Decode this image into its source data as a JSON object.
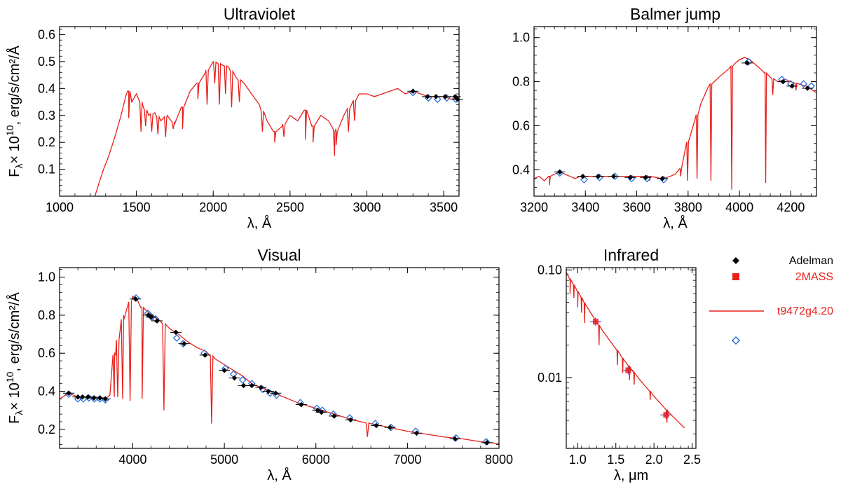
{
  "legend": {
    "items": [
      {
        "label": "Adelman",
        "marker": "diamond",
        "color": "#000000"
      },
      {
        "label": "2MASS",
        "marker": "square",
        "color": "#e8201b"
      },
      {
        "label": "t9472g4.20",
        "marker": "line",
        "color": "#e8201b"
      },
      {
        "label": "",
        "marker": "open-diamond",
        "color": "#2a6fd6"
      }
    ]
  },
  "colors": {
    "model": "#e8201b",
    "adelman": "#000000",
    "synthetic": "#2a6fd6",
    "twomass": "#e8201b"
  },
  "chart_data": [
    {
      "id": "uv",
      "type": "line",
      "title": "Ultraviolet",
      "xlabel": "λ, Å",
      "ylabel": "F_λ× 10^10, erg/s/cm²/Å",
      "xlim": [
        1000,
        3600
      ],
      "ylim": [
        0,
        0.63
      ],
      "xticks": [
        1000,
        1500,
        2000,
        2500,
        3000,
        3500
      ],
      "yticks": [
        0.1,
        0.2,
        0.3,
        0.4,
        0.5,
        0.6
      ],
      "ytick_labels": [
        "0.1",
        "0.2",
        "0.3",
        "0.4",
        "0.5",
        "0.6"
      ],
      "model": {
        "name": "t9472g4.20",
        "x": [
          1230,
          1280,
          1320,
          1360,
          1400,
          1430,
          1450,
          1470,
          1500,
          1540,
          1580,
          1620,
          1660,
          1700,
          1750,
          1800,
          1850,
          1900,
          1950,
          2000,
          2050,
          2100,
          2150,
          2200,
          2250,
          2300,
          2350,
          2400,
          2450,
          2500,
          2550,
          2600,
          2650,
          2700,
          2750,
          2800,
          2850,
          2900,
          2950,
          3000,
          3050,
          3100,
          3150,
          3200,
          3250,
          3300,
          3350,
          3400,
          3450,
          3500,
          3550,
          3600
        ],
        "y": [
          0.0,
          0.09,
          0.15,
          0.22,
          0.3,
          0.37,
          0.39,
          0.35,
          0.38,
          0.34,
          0.3,
          0.31,
          0.28,
          0.3,
          0.27,
          0.33,
          0.39,
          0.42,
          0.46,
          0.5,
          0.49,
          0.48,
          0.44,
          0.42,
          0.38,
          0.34,
          0.28,
          0.24,
          0.26,
          0.3,
          0.28,
          0.32,
          0.26,
          0.3,
          0.28,
          0.24,
          0.3,
          0.34,
          0.38,
          0.38,
          0.37,
          0.38,
          0.39,
          0.4,
          0.38,
          0.39,
          0.38,
          0.37,
          0.37,
          0.37,
          0.36,
          0.37
        ],
        "dips": [
          [
            1450,
            0.29
          ],
          [
            1530,
            0.24
          ],
          [
            1560,
            0.26
          ],
          [
            1600,
            0.24
          ],
          [
            1640,
            0.23
          ],
          [
            1690,
            0.22
          ],
          [
            1740,
            0.25
          ],
          [
            1800,
            0.25
          ],
          [
            1900,
            0.36
          ],
          [
            1960,
            0.34
          ],
          [
            2010,
            0.42
          ],
          [
            2040,
            0.34
          ],
          [
            2080,
            0.38
          ],
          [
            2120,
            0.33
          ],
          [
            2170,
            0.35
          ],
          [
            2320,
            0.24
          ],
          [
            2400,
            0.2
          ],
          [
            2460,
            0.22
          ],
          [
            2600,
            0.21
          ],
          [
            2650,
            0.2
          ],
          [
            2790,
            0.15
          ],
          [
            2800,
            0.19
          ],
          [
            2880,
            0.24
          ],
          [
            2920,
            0.28
          ]
        ]
      },
      "adelman": {
        "x": [
          3300,
          3395,
          3450,
          3510,
          3575,
          3590
        ],
        "y": [
          0.39,
          0.37,
          0.37,
          0.37,
          0.37,
          0.36
        ]
      },
      "synthetic": {
        "x": [
          3300,
          3400,
          3460,
          3520,
          3580
        ],
        "y": [
          0.385,
          0.365,
          0.36,
          0.365,
          0.36
        ]
      }
    },
    {
      "id": "balmer",
      "type": "line",
      "title": "Balmer jump",
      "xlabel": "λ, Å",
      "ylabel": "",
      "xlim": [
        3200,
        4300
      ],
      "ylim": [
        0.28,
        1.05
      ],
      "xticks": [
        3200,
        3400,
        3600,
        3800,
        4000,
        4200
      ],
      "yticks": [
        0.4,
        0.6,
        0.8,
        1.0
      ],
      "ytick_labels": [
        "0.4",
        "0.6",
        "0.8",
        "1.0"
      ],
      "model": {
        "name": "t9472g4.20",
        "x": [
          3200,
          3220,
          3240,
          3260,
          3280,
          3300,
          3320,
          3340,
          3360,
          3380,
          3400,
          3450,
          3500,
          3550,
          3600,
          3650,
          3700,
          3730,
          3750,
          3770,
          3790,
          3820,
          3850,
          3880,
          3920,
          3960,
          3980,
          4000,
          4020,
          4040,
          4060,
          4080,
          4100,
          4120,
          4150,
          4180,
          4200,
          4230,
          4260,
          4300
        ],
        "y": [
          0.36,
          0.37,
          0.35,
          0.37,
          0.38,
          0.39,
          0.38,
          0.37,
          0.36,
          0.37,
          0.37,
          0.37,
          0.37,
          0.37,
          0.37,
          0.37,
          0.36,
          0.37,
          0.38,
          0.4,
          0.5,
          0.6,
          0.7,
          0.78,
          0.82,
          0.86,
          0.88,
          0.9,
          0.91,
          0.9,
          0.88,
          0.86,
          0.84,
          0.82,
          0.8,
          0.81,
          0.8,
          0.79,
          0.78,
          0.75
        ],
        "dips": [
          [
            3260,
            0.33
          ],
          [
            3650,
            0.35
          ],
          [
            3700,
            0.35
          ],
          [
            3771,
            0.37
          ],
          [
            3798,
            0.35
          ],
          [
            3835,
            0.36
          ],
          [
            3889,
            0.35
          ],
          [
            3970,
            0.31
          ],
          [
            4102,
            0.34
          ],
          [
            4130,
            0.74
          ],
          [
            4220,
            0.76
          ]
        ]
      },
      "adelman": {
        "x": [
          3300,
          3390,
          3450,
          3510,
          3575,
          3635,
          3700,
          4030,
          4170,
          4205,
          4265
        ],
        "y": [
          0.39,
          0.37,
          0.37,
          0.37,
          0.365,
          0.365,
          0.36,
          0.885,
          0.8,
          0.78,
          0.77
        ]
      },
      "synthetic": {
        "x": [
          3300,
          3395,
          3455,
          3515,
          3580,
          3640,
          3705,
          4035,
          4165,
          4200,
          4250,
          4280
        ],
        "y": [
          0.385,
          0.355,
          0.365,
          0.37,
          0.36,
          0.36,
          0.355,
          0.89,
          0.81,
          0.79,
          0.79,
          0.78
        ]
      }
    },
    {
      "id": "visual",
      "type": "line",
      "title": "Visual",
      "xlabel": "λ, Å",
      "ylabel": "F_λ× 10^10, erg/s/cm²/Å",
      "xlim": [
        3200,
        8000
      ],
      "ylim": [
        0.1,
        1.05
      ],
      "xticks": [
        4000,
        5000,
        6000,
        7000,
        8000
      ],
      "yticks": [
        0.2,
        0.4,
        0.6,
        0.8,
        1.0
      ],
      "ytick_labels": [
        "0.2",
        "0.4",
        "0.6",
        "0.8",
        "1.0"
      ],
      "model": {
        "name": "t9472g4.20",
        "x": [
          3200,
          3300,
          3400,
          3500,
          3600,
          3700,
          3750,
          3800,
          3900,
          4000,
          4050,
          4100,
          4200,
          4300,
          4400,
          4500,
          4600,
          4700,
          4800,
          4900,
          5000,
          5100,
          5200,
          5300,
          5400,
          5500,
          5600,
          5800,
          6000,
          6200,
          6400,
          6600,
          6800,
          7000,
          7200,
          7400,
          7600,
          7800,
          8000
        ],
        "y": [
          0.36,
          0.39,
          0.37,
          0.37,
          0.37,
          0.36,
          0.38,
          0.6,
          0.8,
          0.9,
          0.88,
          0.84,
          0.8,
          0.77,
          0.73,
          0.7,
          0.66,
          0.63,
          0.61,
          0.57,
          0.54,
          0.51,
          0.48,
          0.44,
          0.42,
          0.4,
          0.38,
          0.34,
          0.31,
          0.28,
          0.25,
          0.23,
          0.21,
          0.19,
          0.175,
          0.16,
          0.15,
          0.135,
          0.125
        ],
        "dips": [
          [
            3798,
            0.37
          ],
          [
            3835,
            0.37
          ],
          [
            3889,
            0.36
          ],
          [
            3970,
            0.35
          ],
          [
            4102,
            0.36
          ],
          [
            4340,
            0.3
          ],
          [
            4861,
            0.23
          ],
          [
            6563,
            0.16
          ]
        ]
      },
      "adelman": {
        "x": [
          3300,
          3400,
          3450,
          3510,
          3575,
          3640,
          3700,
          4030,
          4170,
          4200,
          4265,
          4470,
          4560,
          4790,
          5000,
          5110,
          5210,
          5300,
          5400,
          5480,
          5560,
          5840,
          6020,
          6060,
          6200,
          6380,
          6660,
          6810,
          7100,
          7520,
          7870
        ],
        "y": [
          0.39,
          0.37,
          0.37,
          0.37,
          0.365,
          0.365,
          0.36,
          0.885,
          0.8,
          0.79,
          0.77,
          0.71,
          0.65,
          0.59,
          0.51,
          0.47,
          0.43,
          0.43,
          0.42,
          0.4,
          0.39,
          0.33,
          0.3,
          0.29,
          0.27,
          0.25,
          0.22,
          0.21,
          0.18,
          0.15,
          0.13
        ]
      },
      "synthetic": {
        "x": [
          3300,
          3400,
          3460,
          3520,
          3580,
          3640,
          3700,
          4035,
          4165,
          4205,
          4250,
          4480,
          4550,
          4780,
          5010,
          5100,
          5200,
          5300,
          5420,
          5500,
          5570,
          5830,
          6010,
          6070,
          6190,
          6370,
          6650,
          6820,
          7090,
          7530,
          7860
        ],
        "y": [
          0.385,
          0.36,
          0.36,
          0.365,
          0.36,
          0.36,
          0.355,
          0.89,
          0.81,
          0.79,
          0.78,
          0.68,
          0.65,
          0.6,
          0.52,
          0.49,
          0.46,
          0.44,
          0.41,
          0.39,
          0.38,
          0.34,
          0.31,
          0.3,
          0.28,
          0.26,
          0.23,
          0.21,
          0.19,
          0.155,
          0.135
        ]
      }
    },
    {
      "id": "infrared",
      "type": "line",
      "title": "Infrared",
      "xlabel": "λ, μm",
      "ylabel": "",
      "xscale": "linear",
      "yscale": "log",
      "xlim": [
        0.85,
        2.55
      ],
      "ylim": [
        0.0022,
        0.105
      ],
      "xticks": [
        1.0,
        1.5,
        2.0,
        2.5
      ],
      "xtick_labels": [
        "1.0",
        "1.5",
        "2.0",
        "2.5"
      ],
      "yticks": [
        0.01,
        0.1
      ],
      "ytick_labels": [
        "0.01",
        "0.10"
      ],
      "model": {
        "name": "t9472g4.20",
        "x": [
          0.85,
          0.9,
          1.0,
          1.1,
          1.2,
          1.3,
          1.4,
          1.5,
          1.6,
          1.7,
          1.8,
          1.9,
          2.0,
          2.1,
          2.2,
          2.3,
          2.4
        ],
        "y": [
          0.095,
          0.082,
          0.063,
          0.048,
          0.037,
          0.029,
          0.023,
          0.0185,
          0.0148,
          0.012,
          0.0098,
          0.0081,
          0.0067,
          0.0056,
          0.0047,
          0.004,
          0.0034
        ],
        "dips": [
          [
            0.9,
            0.06
          ],
          [
            0.95,
            0.055
          ],
          [
            1.0,
            0.045
          ],
          [
            1.05,
            0.04
          ],
          [
            1.09,
            0.032
          ],
          [
            1.28,
            0.02
          ],
          [
            1.52,
            0.013
          ],
          [
            1.59,
            0.011
          ],
          [
            1.68,
            0.0095
          ],
          [
            1.74,
            0.0086
          ],
          [
            1.95,
            0.0062
          ],
          [
            2.17,
            0.0038
          ]
        ]
      },
      "twomass": {
        "x": [
          1.235,
          1.662,
          2.159
        ],
        "y": [
          0.033,
          0.0117,
          0.0045
        ]
      }
    }
  ]
}
